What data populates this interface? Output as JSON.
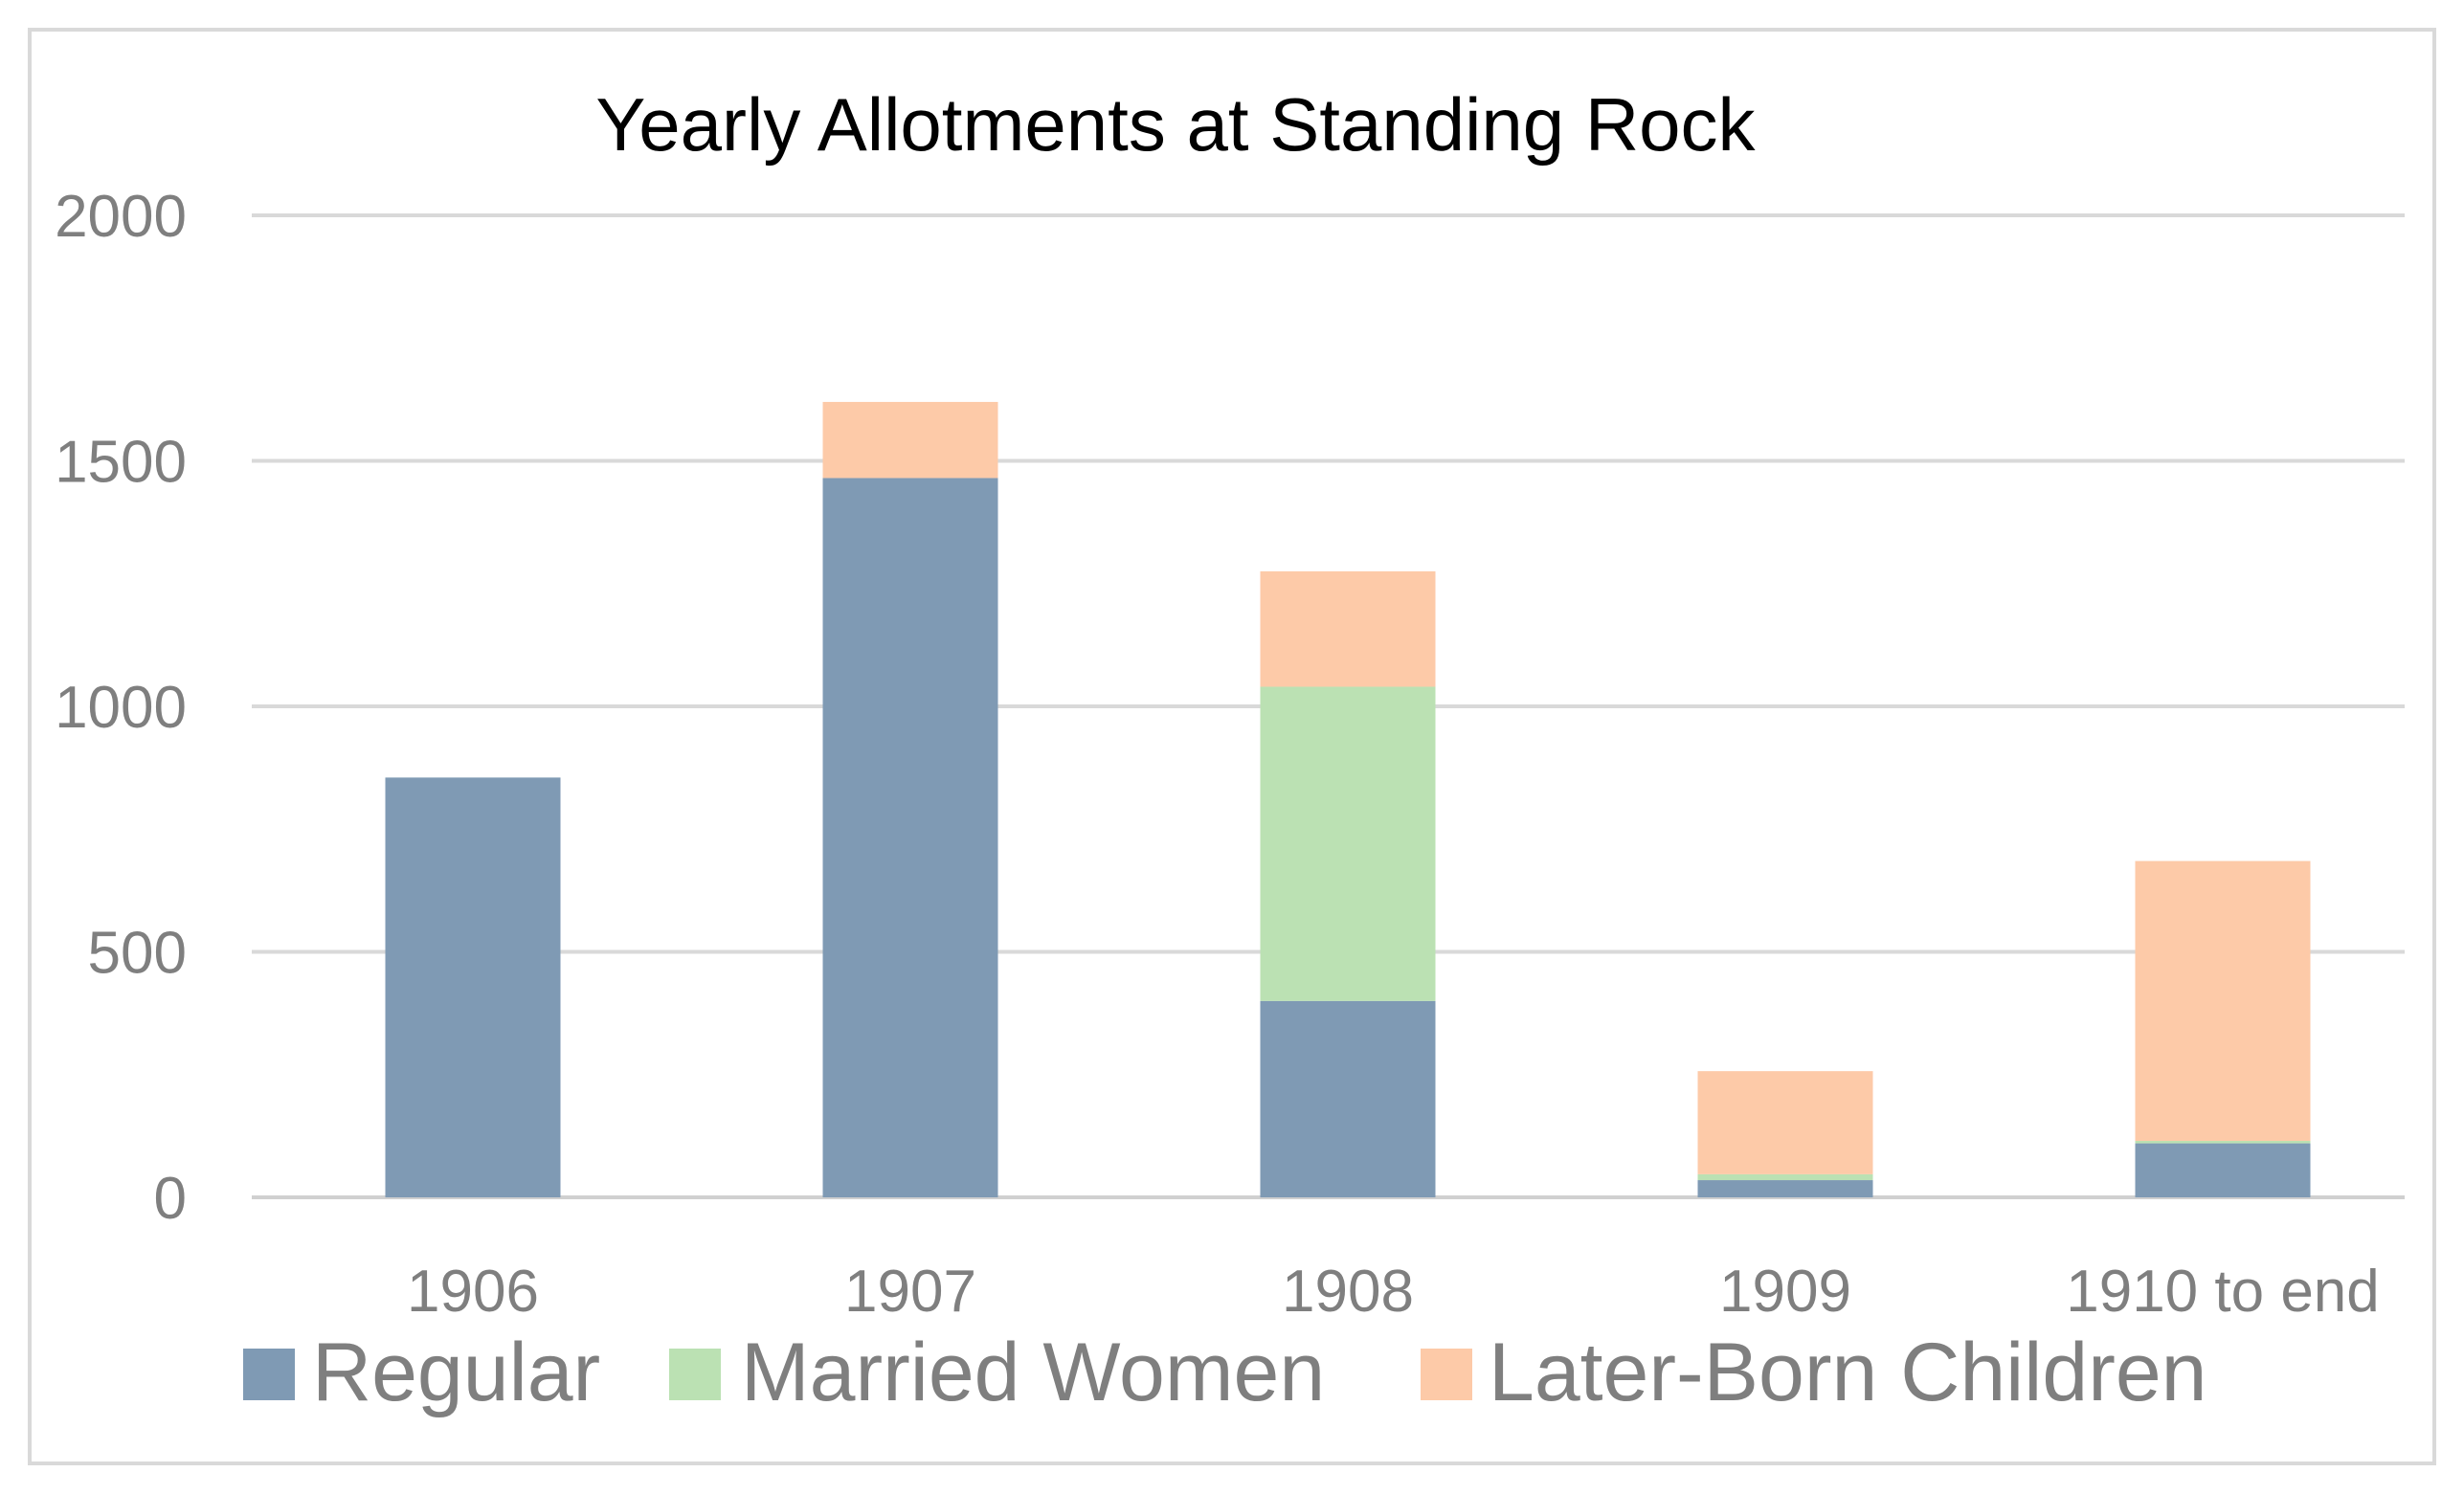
{
  "chart_data": {
    "type": "bar",
    "stacked": true,
    "title": "Yearly Allotments at Standing Rock",
    "xlabel": "",
    "ylabel": "",
    "categories": [
      "1906",
      "1907",
      "1908",
      "1909",
      "1910 to end"
    ],
    "series": [
      {
        "name": "Regular",
        "color": "#7f9ab4",
        "values": [
          855,
          1465,
          400,
          35,
          110
        ]
      },
      {
        "name": "Married Women",
        "color": "#bbe1b3",
        "values": [
          0,
          0,
          640,
          12,
          5
        ]
      },
      {
        "name": "Later-Born Children",
        "color": "#fdcaa8",
        "values": [
          0,
          155,
          235,
          210,
          570
        ]
      }
    ],
    "ylim": [
      0,
      2000
    ],
    "yticks": [
      "0",
      "500",
      "1000",
      "1500",
      "2000"
    ],
    "grid": true,
    "legend_position": "bottom"
  }
}
